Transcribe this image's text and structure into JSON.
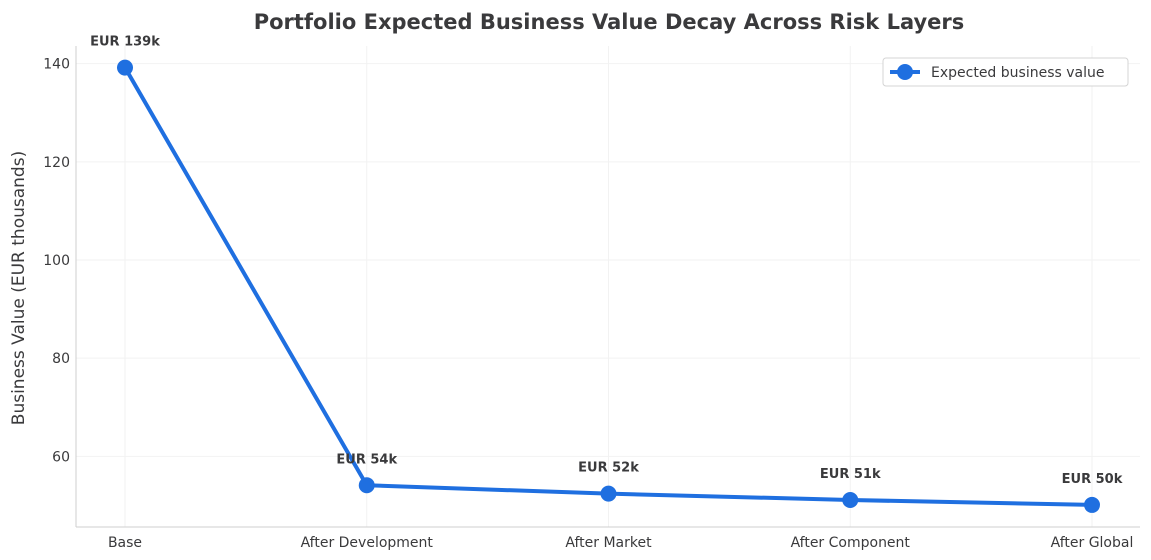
{
  "chart_data": {
    "type": "line",
    "title": "Portfolio Expected Business Value Decay Across Risk Layers",
    "xlabel": "",
    "ylabel": "Business Value (EUR thousands)",
    "categories": [
      "Base",
      "After Development",
      "After Market",
      "After Component",
      "After Global"
    ],
    "series": [
      {
        "name": "Expected business value",
        "values": [
          139.2,
          54.1,
          52.4,
          51.1,
          50.1
        ],
        "color": "#1f6fe0",
        "data_labels": [
          "EUR 139k",
          "EUR 54k",
          "EUR 52k",
          "EUR 51k",
          "EUR 50k"
        ]
      }
    ],
    "yticks": [
      60,
      80,
      100,
      120,
      140
    ],
    "ylim": [
      45.6,
      143.6
    ],
    "grid": true,
    "legend_position": "top-right"
  }
}
